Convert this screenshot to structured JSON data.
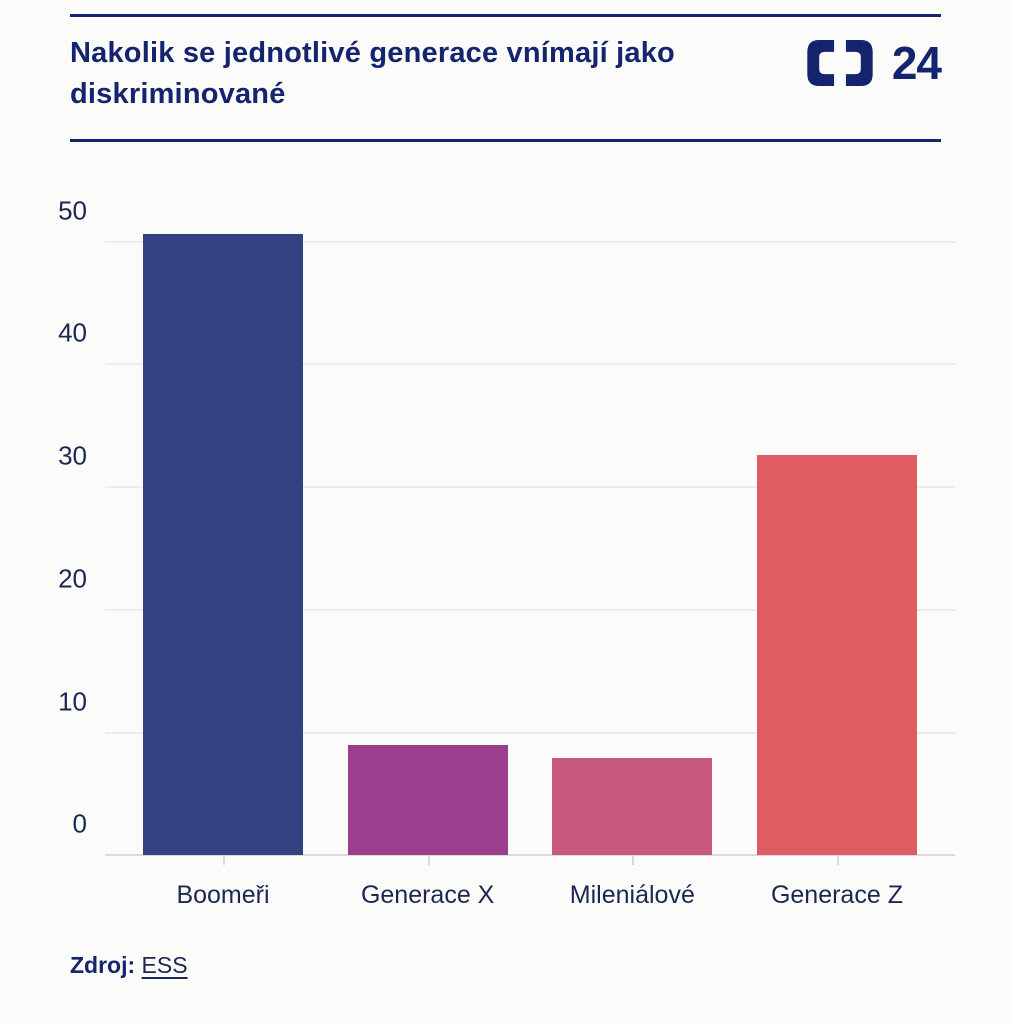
{
  "header": {
    "title": "Nakolik se jednotlivé generace vnímají jako diskriminované",
    "logo": {
      "name": "ct24-logo",
      "channel_number": "24"
    }
  },
  "chart_data": {
    "type": "bar",
    "title": "Nakolik se jednotlivé generace vnímají jako diskriminované",
    "categories": [
      "Boomeři",
      "Generace X",
      "Mileniálové",
      "Generace Z"
    ],
    "values": [
      50.6,
      9.0,
      7.9,
      32.6
    ],
    "bar_colors": [
      "#344181",
      "#9b3e8d",
      "#c9587f",
      "#df5d62"
    ],
    "xlabel": "",
    "ylabel": "",
    "ylim": [
      0,
      55
    ],
    "yticks": [
      0,
      10,
      20,
      30,
      40,
      50
    ],
    "grid": true,
    "legend": false
  },
  "footer": {
    "source_label": "Zdroj:",
    "source_link": "ESS"
  },
  "colors": {
    "accent_navy": "#14246e",
    "axis_text": "#1c2653",
    "gridline": "#ececf0",
    "axis_line": "#d9d9de",
    "background": "#fbfbfa"
  }
}
